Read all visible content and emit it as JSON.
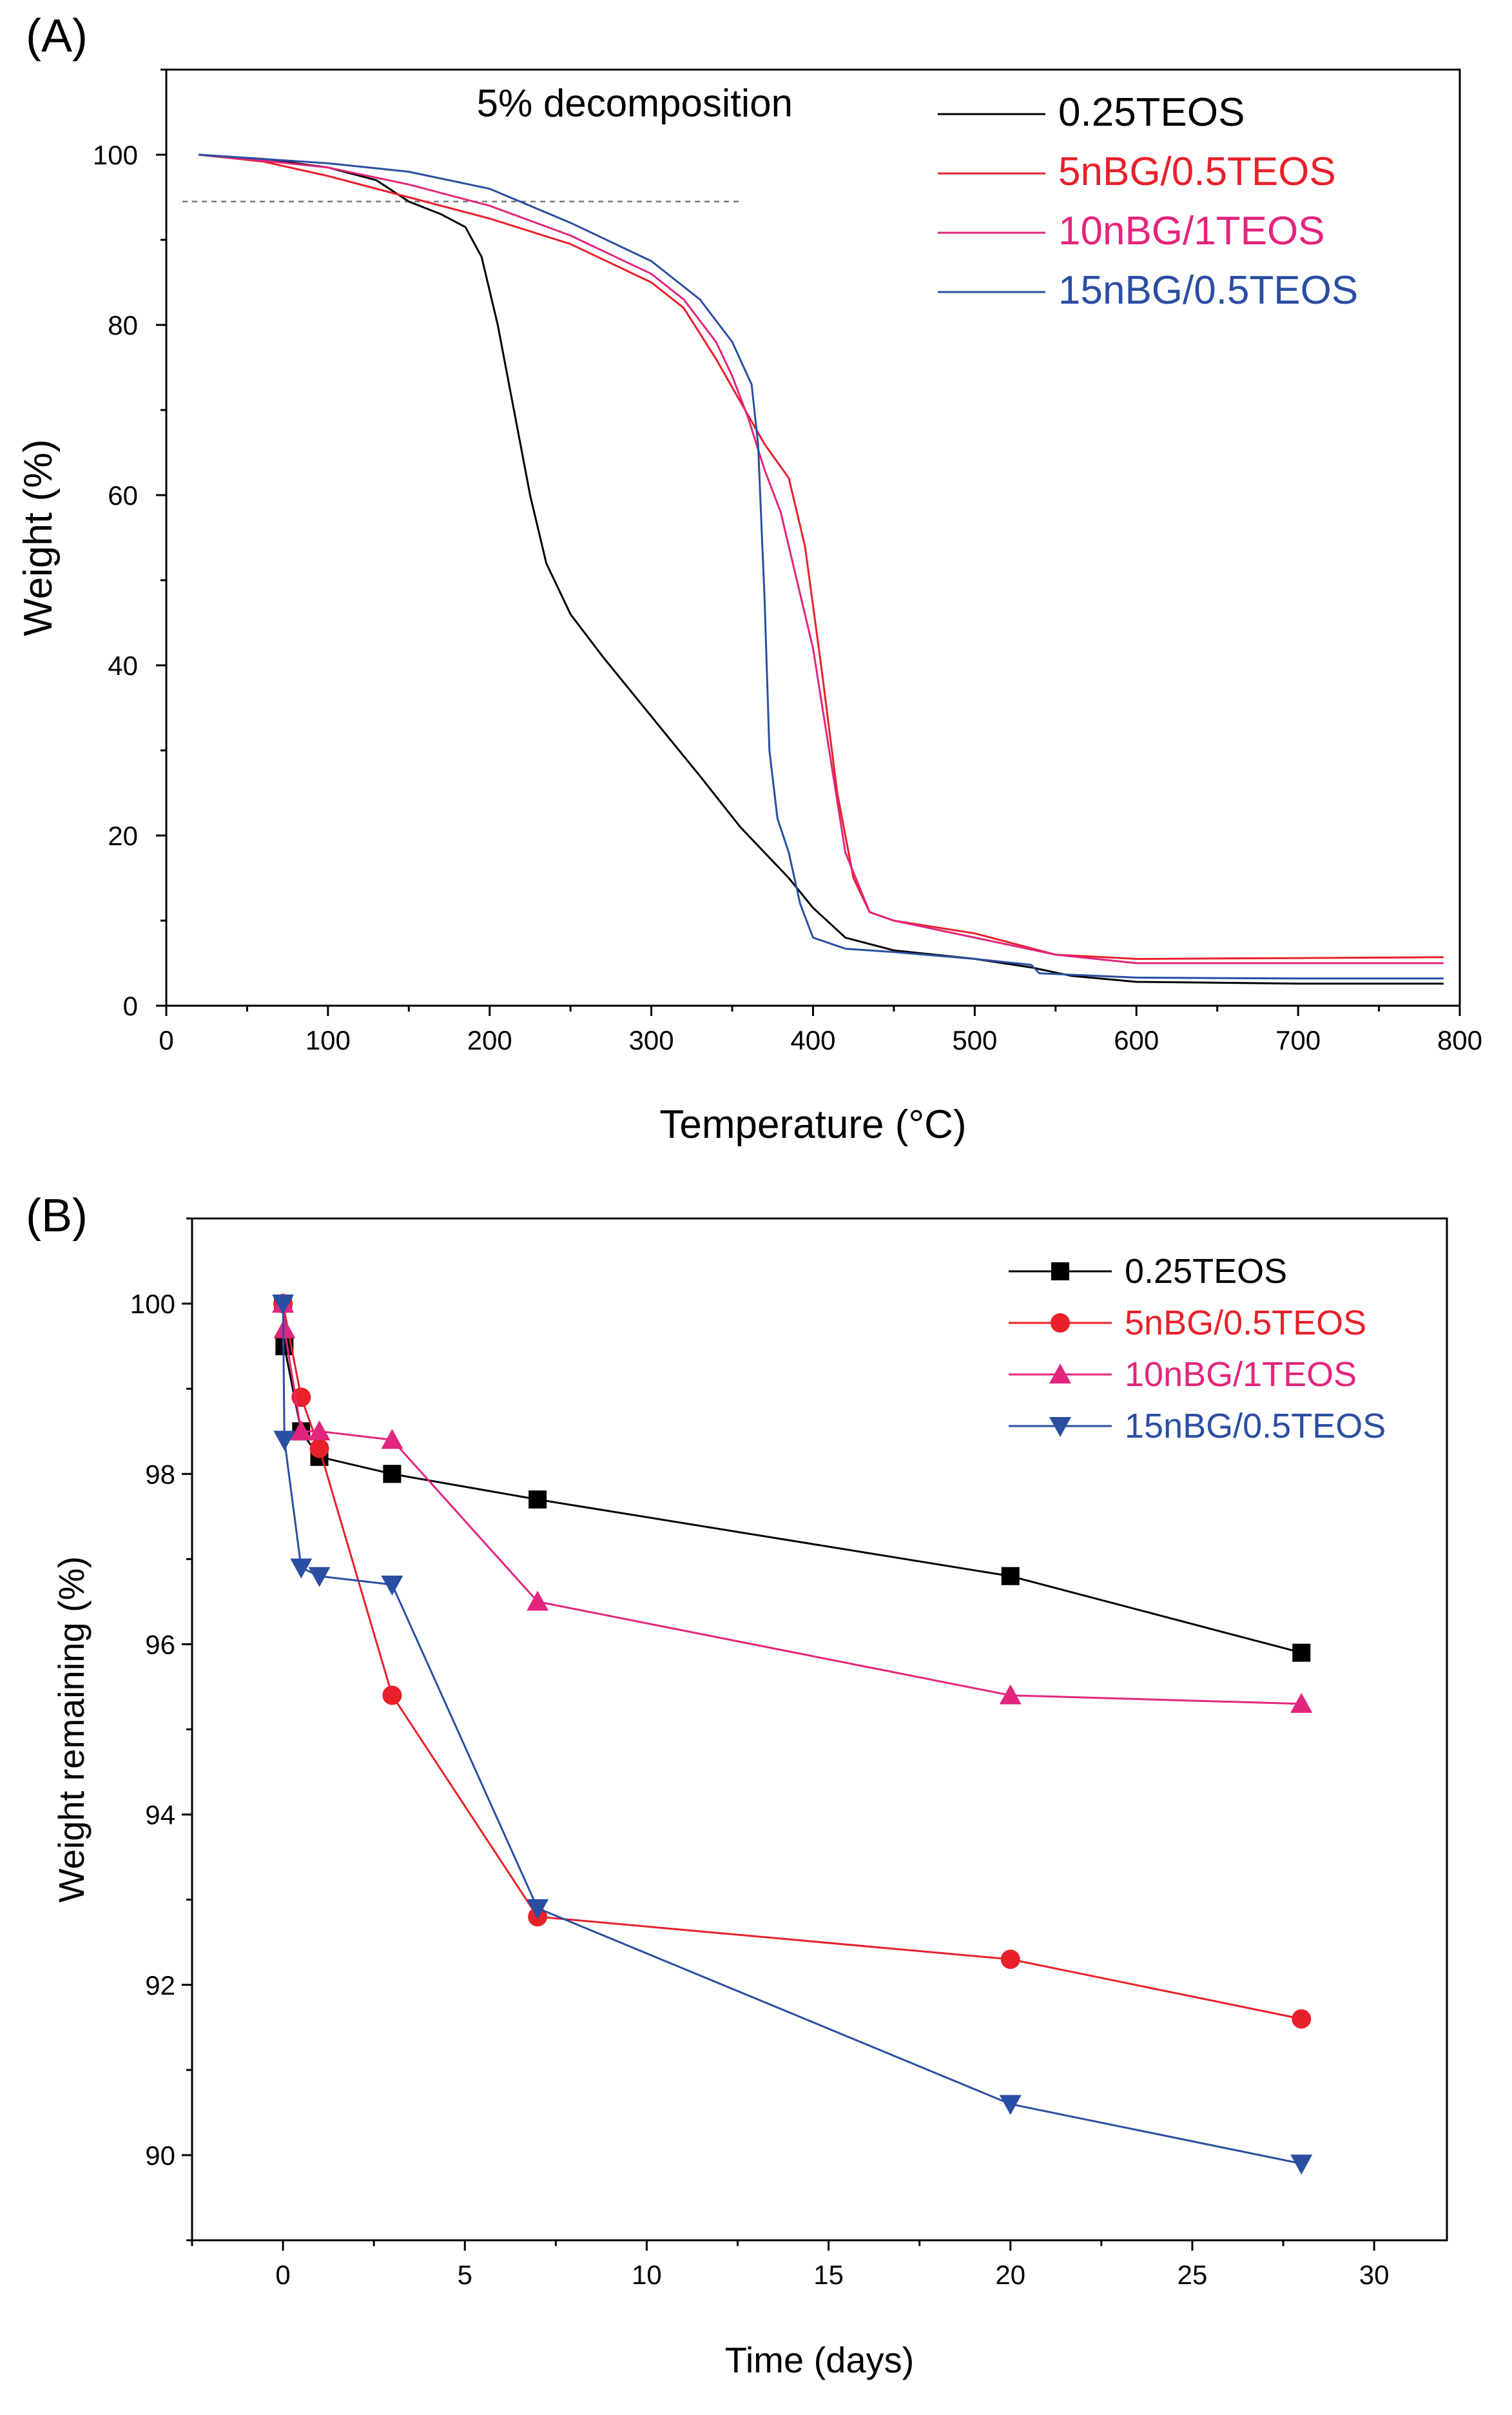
{
  "colors": {
    "black": "#000000",
    "red": "#e8202a",
    "magenta": "#e2257d",
    "blue": "#2a4ea2",
    "dashed": "#777777"
  },
  "chart_data": [
    {
      "panel_label": "(A)",
      "type": "line",
      "title": "",
      "xlabel": "Temperature (°C)",
      "ylabel": "Weight (%)",
      "xlim": [
        0,
        800
      ],
      "ylim": [
        0,
        110
      ],
      "xticks": [
        0,
        100,
        200,
        300,
        400,
        500,
        600,
        700,
        800
      ],
      "yticks": [
        0,
        20,
        40,
        60,
        80,
        100
      ],
      "annotation": {
        "text": "5% decomposition",
        "reference_y": 94.5,
        "reference_x_range": [
          10,
          355
        ]
      },
      "legend_position": "top-right",
      "series": [
        {
          "name": "0.25TEOS",
          "color": "#000000",
          "x": [
            20,
            60,
            100,
            130,
            150,
            170,
            185,
            195,
            205,
            215,
            225,
            235,
            250,
            270,
            300,
            330,
            355,
            370,
            385,
            400,
            420,
            450,
            500,
            535,
            560,
            600,
            700,
            790
          ],
          "y": [
            100,
            99.5,
            98.5,
            97,
            94.5,
            93,
            91.5,
            88,
            80,
            70,
            60,
            52,
            46,
            41,
            34,
            27,
            21,
            18,
            15,
            11.5,
            8,
            6.5,
            5.5,
            4.5,
            3.5,
            2.8,
            2.6,
            2.6
          ]
        },
        {
          "name": "5nBG/0.5TEOS",
          "color": "#e8202a",
          "x": [
            20,
            60,
            100,
            150,
            200,
            250,
            300,
            320,
            340,
            355,
            370,
            385,
            395,
            405,
            415,
            425,
            435,
            450,
            500,
            550,
            600,
            700,
            790
          ],
          "y": [
            100,
            99.2,
            97.5,
            95,
            92.5,
            89.5,
            85,
            82,
            76,
            71,
            66,
            62,
            54,
            40,
            25,
            15,
            11,
            10,
            8.5,
            6,
            5.5,
            5.6,
            5.7
          ]
        },
        {
          "name": "10nBG/1TEOS",
          "color": "#e2257d",
          "x": [
            20,
            60,
            100,
            150,
            200,
            250,
            300,
            320,
            340,
            350,
            360,
            370,
            380,
            390,
            400,
            410,
            420,
            435,
            450,
            500,
            550,
            600,
            700,
            790
          ],
          "y": [
            100,
            99.3,
            98.5,
            96.5,
            94,
            90.5,
            86,
            83,
            78,
            74,
            69,
            63,
            58,
            50,
            42,
            30,
            18,
            11,
            10,
            8,
            6,
            5,
            5,
            5
          ]
        },
        {
          "name": "15nBG/0.5TEOS",
          "color": "#2a4ea2",
          "x": [
            20,
            60,
            100,
            150,
            200,
            250,
            300,
            330,
            350,
            362,
            366,
            370,
            373,
            378,
            385,
            392,
            400,
            420,
            450,
            500,
            535,
            540,
            600,
            700,
            790
          ],
          "y": [
            100,
            99.5,
            99,
            98,
            96,
            92,
            87.5,
            83,
            78,
            73,
            66,
            48,
            30,
            22,
            18,
            12,
            8,
            6.7,
            6.3,
            5.5,
            4.8,
            3.8,
            3.3,
            3.2,
            3.2
          ]
        }
      ]
    },
    {
      "panel_label": "(B)",
      "type": "line",
      "title": "",
      "xlabel": "Time (days)",
      "ylabel": "Weight remaining (%)",
      "xlim": [
        -2.5,
        32
      ],
      "ylim": [
        89,
        101
      ],
      "xticks": [
        0,
        5,
        10,
        15,
        20,
        25,
        30
      ],
      "yticks": [
        90,
        92,
        94,
        96,
        98,
        100
      ],
      "legend_position": "top-right",
      "series": [
        {
          "name": "0.25TEOS",
          "color": "#000000",
          "marker": "square",
          "x": [
            0,
            0.04,
            0.5,
            1,
            3,
            7,
            20,
            28
          ],
          "y": [
            100,
            99.5,
            98.5,
            98.2,
            98.0,
            97.7,
            96.8,
            95.9
          ]
        },
        {
          "name": "5nBG/0.5TEOS",
          "color": "#e8202a",
          "marker": "circle",
          "x": [
            0,
            0.5,
            1,
            3,
            7,
            20,
            28
          ],
          "y": [
            100,
            98.9,
            98.3,
            95.4,
            92.8,
            92.3,
            91.6
          ]
        },
        {
          "name": "10nBG/1TEOS",
          "color": "#e2257d",
          "marker": "triangle-up",
          "x": [
            0,
            0.04,
            0.5,
            1,
            3,
            7,
            20,
            28
          ],
          "y": [
            100,
            99.7,
            98.5,
            98.5,
            98.4,
            96.5,
            95.4,
            95.3
          ]
        },
        {
          "name": "15nBG/0.5TEOS",
          "color": "#2a4ea2",
          "marker": "triangle-down",
          "x": [
            0,
            0.04,
            0.5,
            1,
            3,
            7,
            20,
            28
          ],
          "y": [
            100,
            98.4,
            96.9,
            96.8,
            96.7,
            92.9,
            90.6,
            89.9
          ]
        }
      ]
    }
  ]
}
